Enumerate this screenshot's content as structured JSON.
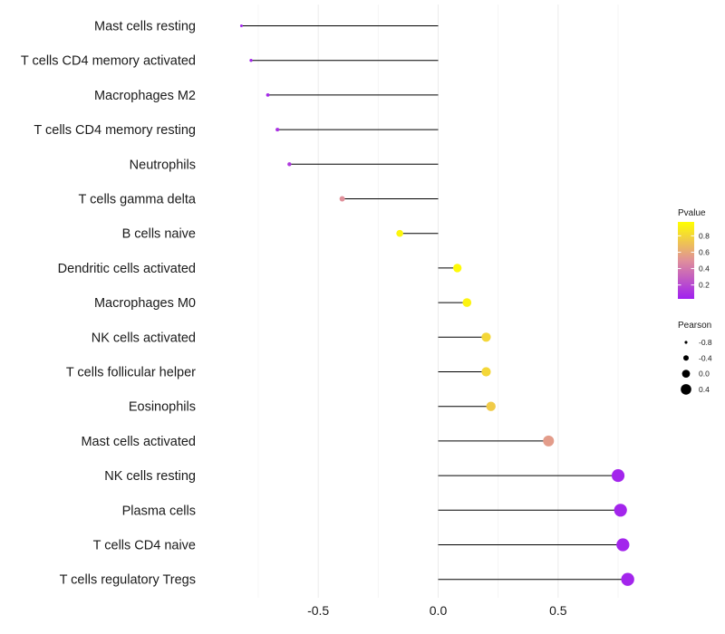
{
  "chart_data": {
    "type": "lollipop",
    "title": "",
    "xlabel": "",
    "ylabel": "",
    "xlim": [
      -0.95,
      0.95
    ],
    "x_ticks": [
      -0.5,
      0.0,
      0.5
    ],
    "x_tick_labels": [
      "-0.5",
      "0.0",
      "0.5"
    ],
    "grid": true,
    "categories": [
      "Mast cells resting",
      "T cells CD4 memory activated",
      "Macrophages M2",
      "T cells CD4 memory resting",
      "Neutrophils",
      "T cells gamma delta",
      "B cells naive",
      "Dendritic cells activated",
      "Macrophages M0",
      "NK cells activated",
      "T cells follicular helper",
      "Eosinophils",
      "Mast cells activated",
      "NK cells resting",
      "Plasma cells",
      "T cells CD4 naive",
      "T cells regulatory  Tregs"
    ],
    "pearson": [
      -0.82,
      -0.78,
      -0.71,
      -0.67,
      -0.62,
      -0.4,
      -0.16,
      0.08,
      0.12,
      0.2,
      0.2,
      0.22,
      0.46,
      0.75,
      0.76,
      0.77,
      0.79
    ],
    "pvalue": [
      0.05,
      0.05,
      0.07,
      0.1,
      0.13,
      0.5,
      0.93,
      0.95,
      0.92,
      0.8,
      0.8,
      0.75,
      0.55,
      0.05,
      0.05,
      0.05,
      0.05
    ],
    "legend_color": {
      "title": "Pvalue",
      "ticks": [
        0.8,
        0.6,
        0.4,
        0.2
      ],
      "tick_labels": [
        "0.8",
        "0.6",
        "0.4",
        "0.2"
      ],
      "range": [
        0.03,
        0.97
      ],
      "low_color": "#a020f0",
      "mid_color": "#e0909a",
      "high_color": "#ffff00"
    },
    "legend_size": {
      "title": "Pearson",
      "values": [
        -0.8,
        -0.4,
        0.0,
        0.4
      ],
      "labels": [
        "-0.8",
        "-0.4",
        "0.0",
        "0.4"
      ]
    },
    "legend_position": "right"
  }
}
